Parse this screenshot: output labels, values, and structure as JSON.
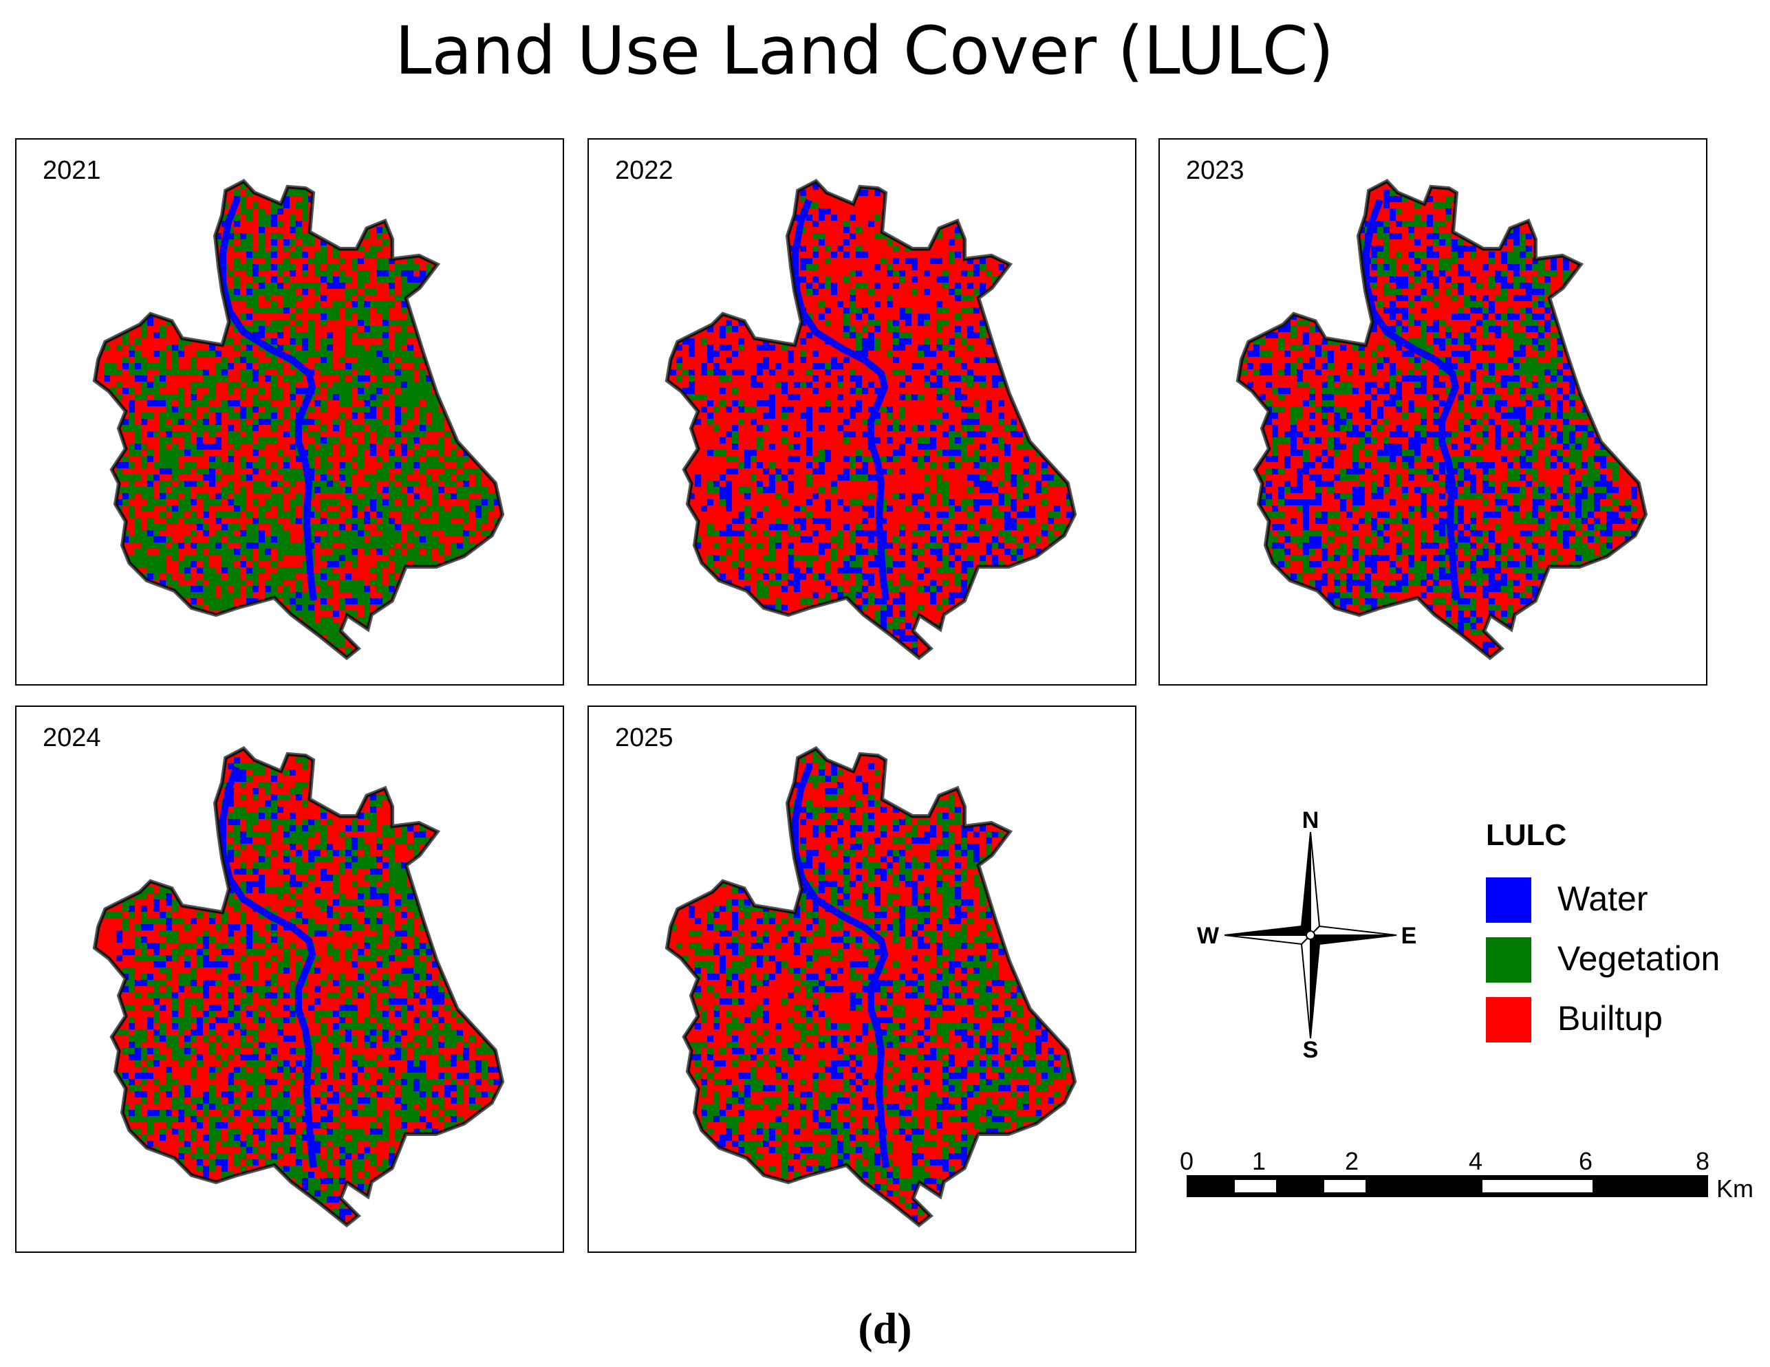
{
  "title": "Land Use Land Cover (LULC)",
  "panels": [
    {
      "year": "2021",
      "water": 0.1,
      "vegetation": 0.42,
      "builtup": 0.48
    },
    {
      "year": "2022",
      "water": 0.2,
      "vegetation": 0.12,
      "builtup": 0.68
    },
    {
      "year": "2023",
      "water": 0.26,
      "vegetation": 0.22,
      "builtup": 0.52
    },
    {
      "year": "2024",
      "water": 0.16,
      "vegetation": 0.32,
      "builtup": 0.52
    },
    {
      "year": "2025",
      "water": 0.18,
      "vegetation": 0.24,
      "builtup": 0.58
    }
  ],
  "legend": {
    "title": "LULC",
    "items": [
      {
        "label": "Water",
        "color": "#0000ff"
      },
      {
        "label": "Vegetation",
        "color": "#007a00"
      },
      {
        "label": "Builtup",
        "color": "#ff0000"
      }
    ]
  },
  "compass": {
    "n": "N",
    "s": "S",
    "e": "E",
    "w": "W"
  },
  "scale_bar": {
    "ticks": [
      "0",
      "1",
      "2",
      "4",
      "6",
      "8"
    ],
    "unit": "Km"
  },
  "caption": "(d)"
}
